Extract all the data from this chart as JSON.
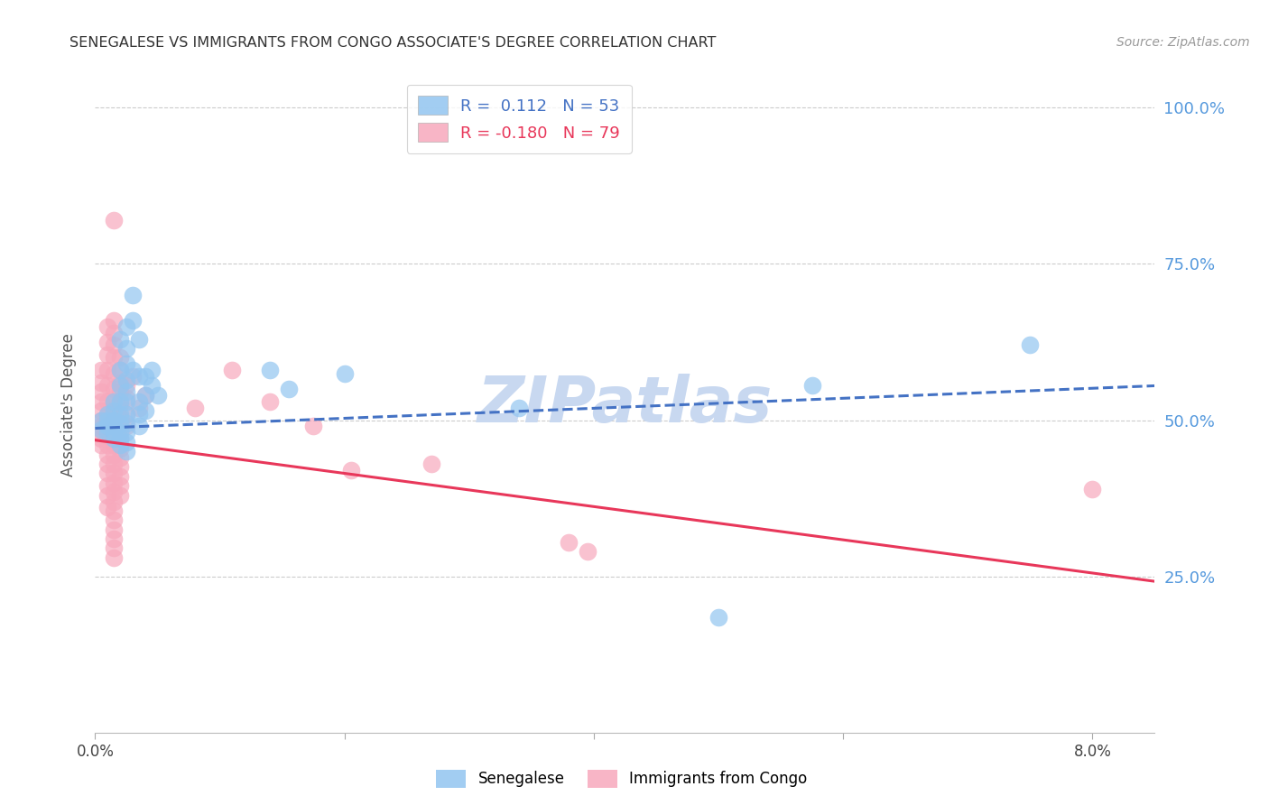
{
  "title": "SENEGALESE VS IMMIGRANTS FROM CONGO ASSOCIATE'S DEGREE CORRELATION CHART",
  "source": "Source: ZipAtlas.com",
  "ylabel": "Associate's Degree",
  "senegalese_color": "#92C5F0",
  "congo_color": "#F7A8BC",
  "blue_line_color": "#4472C4",
  "pink_line_color": "#E8375A",
  "watermark": "ZIPatlas",
  "watermark_color": "#C8D8F0",
  "background_color": "#FFFFFF",
  "grid_color": "#CCCCCC",
  "right_axis_color": "#5599DD",
  "title_color": "#333333",
  "xlim": [
    0.0,
    0.085
  ],
  "ylim": [
    0.0,
    1.05
  ],
  "blue_line_x0": 0.0,
  "blue_line_x1": 0.085,
  "blue_line_y0": 0.487,
  "blue_line_y1": 0.555,
  "pink_line_x0": 0.0,
  "pink_line_x1": 0.085,
  "pink_line_y0": 0.468,
  "pink_line_y1": 0.242,
  "senegalese_points": [
    [
      0.0005,
      0.5
    ],
    [
      0.0005,
      0.485
    ],
    [
      0.001,
      0.51
    ],
    [
      0.001,
      0.5
    ],
    [
      0.001,
      0.49
    ],
    [
      0.001,
      0.48
    ],
    [
      0.0015,
      0.53
    ],
    [
      0.0015,
      0.515
    ],
    [
      0.0015,
      0.5
    ],
    [
      0.0015,
      0.49
    ],
    [
      0.0015,
      0.48
    ],
    [
      0.0015,
      0.47
    ],
    [
      0.002,
      0.63
    ],
    [
      0.002,
      0.58
    ],
    [
      0.002,
      0.555
    ],
    [
      0.002,
      0.53
    ],
    [
      0.002,
      0.51
    ],
    [
      0.002,
      0.495
    ],
    [
      0.002,
      0.48
    ],
    [
      0.002,
      0.47
    ],
    [
      0.002,
      0.46
    ],
    [
      0.0025,
      0.65
    ],
    [
      0.0025,
      0.615
    ],
    [
      0.0025,
      0.59
    ],
    [
      0.0025,
      0.565
    ],
    [
      0.0025,
      0.545
    ],
    [
      0.0025,
      0.53
    ],
    [
      0.0025,
      0.51
    ],
    [
      0.0025,
      0.495
    ],
    [
      0.0025,
      0.48
    ],
    [
      0.0025,
      0.465
    ],
    [
      0.0025,
      0.45
    ],
    [
      0.003,
      0.7
    ],
    [
      0.003,
      0.66
    ],
    [
      0.003,
      0.58
    ],
    [
      0.0035,
      0.63
    ],
    [
      0.0035,
      0.57
    ],
    [
      0.0035,
      0.53
    ],
    [
      0.0035,
      0.51
    ],
    [
      0.0035,
      0.49
    ],
    [
      0.004,
      0.57
    ],
    [
      0.004,
      0.54
    ],
    [
      0.004,
      0.515
    ],
    [
      0.0045,
      0.58
    ],
    [
      0.0045,
      0.555
    ],
    [
      0.005,
      0.54
    ],
    [
      0.014,
      0.58
    ],
    [
      0.0155,
      0.55
    ],
    [
      0.02,
      0.575
    ],
    [
      0.034,
      0.52
    ],
    [
      0.05,
      0.185
    ],
    [
      0.0575,
      0.555
    ],
    [
      0.075,
      0.62
    ]
  ],
  "congo_points": [
    [
      0.0005,
      0.58
    ],
    [
      0.0005,
      0.56
    ],
    [
      0.0005,
      0.545
    ],
    [
      0.0005,
      0.53
    ],
    [
      0.0005,
      0.515
    ],
    [
      0.0005,
      0.5
    ],
    [
      0.0005,
      0.49
    ],
    [
      0.0005,
      0.48
    ],
    [
      0.0005,
      0.47
    ],
    [
      0.0005,
      0.46
    ],
    [
      0.001,
      0.65
    ],
    [
      0.001,
      0.625
    ],
    [
      0.001,
      0.605
    ],
    [
      0.001,
      0.58
    ],
    [
      0.001,
      0.555
    ],
    [
      0.001,
      0.53
    ],
    [
      0.001,
      0.51
    ],
    [
      0.001,
      0.49
    ],
    [
      0.001,
      0.475
    ],
    [
      0.001,
      0.46
    ],
    [
      0.001,
      0.445
    ],
    [
      0.001,
      0.43
    ],
    [
      0.001,
      0.415
    ],
    [
      0.001,
      0.395
    ],
    [
      0.001,
      0.38
    ],
    [
      0.001,
      0.36
    ],
    [
      0.0015,
      0.82
    ],
    [
      0.0015,
      0.66
    ],
    [
      0.0015,
      0.64
    ],
    [
      0.0015,
      0.62
    ],
    [
      0.0015,
      0.6
    ],
    [
      0.0015,
      0.575
    ],
    [
      0.0015,
      0.55
    ],
    [
      0.0015,
      0.53
    ],
    [
      0.0015,
      0.51
    ],
    [
      0.0015,
      0.49
    ],
    [
      0.0015,
      0.475
    ],
    [
      0.0015,
      0.46
    ],
    [
      0.0015,
      0.445
    ],
    [
      0.0015,
      0.43
    ],
    [
      0.0015,
      0.415
    ],
    [
      0.0015,
      0.4
    ],
    [
      0.0015,
      0.385
    ],
    [
      0.0015,
      0.37
    ],
    [
      0.0015,
      0.355
    ],
    [
      0.0015,
      0.34
    ],
    [
      0.0015,
      0.325
    ],
    [
      0.0015,
      0.31
    ],
    [
      0.0015,
      0.295
    ],
    [
      0.0015,
      0.28
    ],
    [
      0.002,
      0.6
    ],
    [
      0.002,
      0.58
    ],
    [
      0.002,
      0.56
    ],
    [
      0.002,
      0.545
    ],
    [
      0.002,
      0.525
    ],
    [
      0.002,
      0.505
    ],
    [
      0.002,
      0.49
    ],
    [
      0.002,
      0.47
    ],
    [
      0.002,
      0.455
    ],
    [
      0.002,
      0.44
    ],
    [
      0.002,
      0.425
    ],
    [
      0.002,
      0.41
    ],
    [
      0.002,
      0.395
    ],
    [
      0.002,
      0.38
    ],
    [
      0.0025,
      0.555
    ],
    [
      0.0025,
      0.535
    ],
    [
      0.0025,
      0.51
    ],
    [
      0.0025,
      0.49
    ],
    [
      0.003,
      0.57
    ],
    [
      0.0035,
      0.52
    ],
    [
      0.004,
      0.54
    ],
    [
      0.008,
      0.52
    ],
    [
      0.011,
      0.58
    ],
    [
      0.014,
      0.53
    ],
    [
      0.0175,
      0.49
    ],
    [
      0.0205,
      0.42
    ],
    [
      0.027,
      0.43
    ],
    [
      0.038,
      0.305
    ],
    [
      0.0395,
      0.29
    ],
    [
      0.08,
      0.39
    ]
  ]
}
